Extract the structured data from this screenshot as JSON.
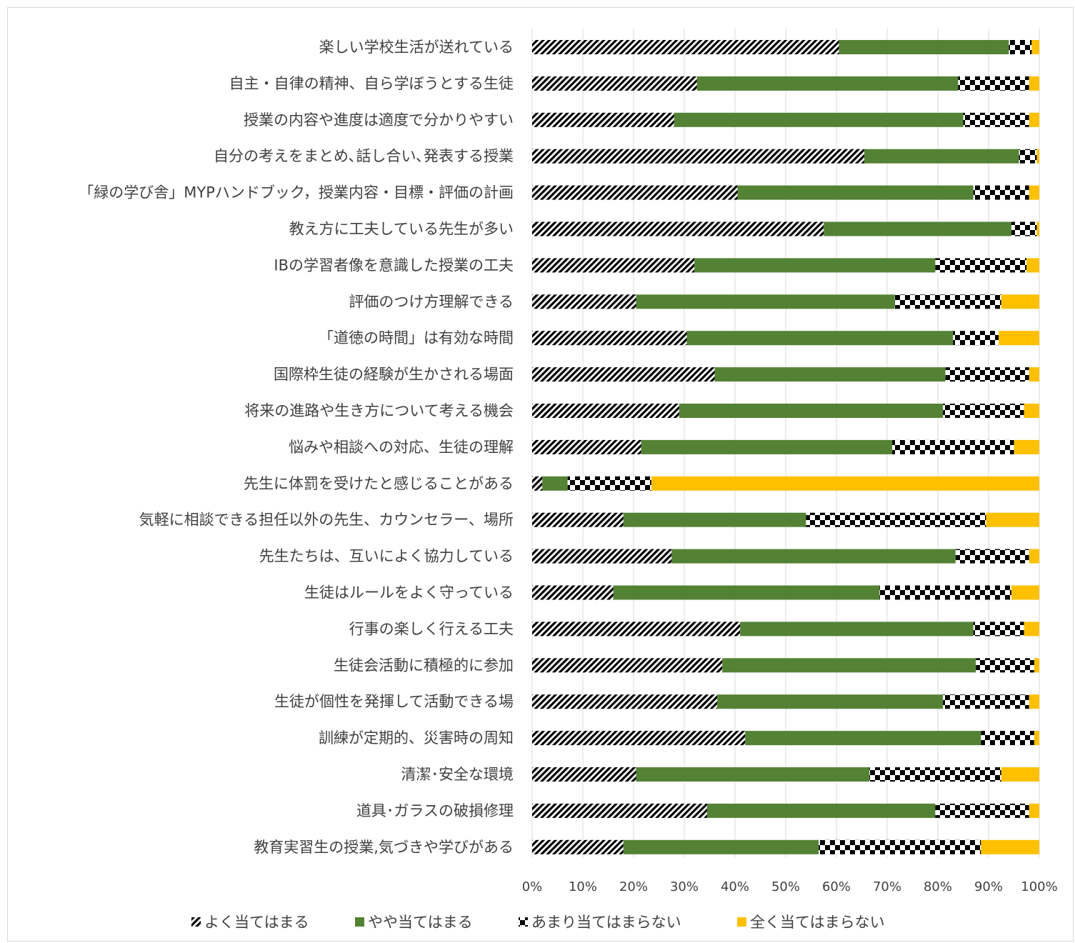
{
  "chart_data": {
    "type": "bar",
    "orientation": "horizontal",
    "stacked": "percent",
    "categories": [
      "楽しい学校生活が送れている",
      "自主・自律の精神、自ら学ぼうとする生徒",
      "授業の内容や進度は適度で分かりやすい",
      "自分の考えをまとめ､話し合い､発表する授業",
      "「緑の学び舎」MYPハンドブック，授業内容・目標・評価の計画",
      "教え方に工夫している先生が多い",
      "IBの学習者像を意識した授業の工夫",
      "評価のつけ方理解できる",
      "「道徳の時間」は有効な時間",
      "国際枠生徒の経験が生かされる場面",
      "将来の進路や生き方について考える機会",
      "悩みや相談への対応、生徒の理解",
      "先生に体罰を受けたと感じることがある",
      "気軽に相談できる担任以外の先生、カウンセラー、場所",
      "先生たちは、互いによく協力している",
      "生徒はルールをよく守っている",
      "行事の楽しく行える工夫",
      "生徒会活動に積極的に参加",
      "生徒が個性を発揮して活動できる場",
      "訓練が定期的、災害時の周知",
      "清潔･安全な環境",
      "道具･ガラスの破損修理",
      "教育実習生の授業,気づきや学びがある"
    ],
    "series": [
      {
        "name": "よく当てはまる",
        "color": "#000000",
        "pattern": "diagonal-stripes",
        "values": [
          60.5,
          32.5,
          28,
          65.5,
          40.5,
          57.5,
          32,
          20.5,
          30.5,
          36,
          29,
          21.5,
          2,
          18,
          27.5,
          16,
          41,
          37.5,
          36.5,
          42,
          20.5,
          34.5,
          18
        ]
      },
      {
        "name": "やや当てはまる",
        "color": "#548235",
        "pattern": "solid",
        "values": [
          33.5,
          51.5,
          57,
          30.5,
          46.5,
          37,
          47.5,
          51,
          52.5,
          45.5,
          52,
          49.5,
          5,
          36,
          56,
          52.5,
          46,
          50,
          44.5,
          46.5,
          46,
          45,
          38.5
        ]
      },
      {
        "name": "あまり当てはまらない",
        "color": "#000000",
        "pattern": "checkerboard",
        "values": [
          4.5,
          14,
          13,
          3.5,
          11,
          5,
          18,
          21,
          9,
          16.5,
          16,
          24,
          16.5,
          35.5,
          14.5,
          26,
          10,
          11.5,
          17,
          10.5,
          26,
          18.5,
          32
        ]
      },
      {
        "name": "全く当てはまらない",
        "color": "#FFC000",
        "pattern": "solid",
        "values": [
          1.5,
          2,
          2,
          0.5,
          2,
          0.5,
          2.5,
          7.5,
          8,
          2,
          3,
          5,
          76.5,
          10.5,
          2,
          5.5,
          3,
          1,
          2,
          1,
          7.5,
          2,
          11.5
        ]
      }
    ],
    "xlim": [
      0,
      100
    ],
    "x_ticks": [
      "0%",
      "10%",
      "20%",
      "30%",
      "40%",
      "50%",
      "60%",
      "70%",
      "80%",
      "90%",
      "100%"
    ],
    "grid": "vertical",
    "legend_position": "bottom",
    "title": "",
    "xlabel": "",
    "ylabel": ""
  }
}
